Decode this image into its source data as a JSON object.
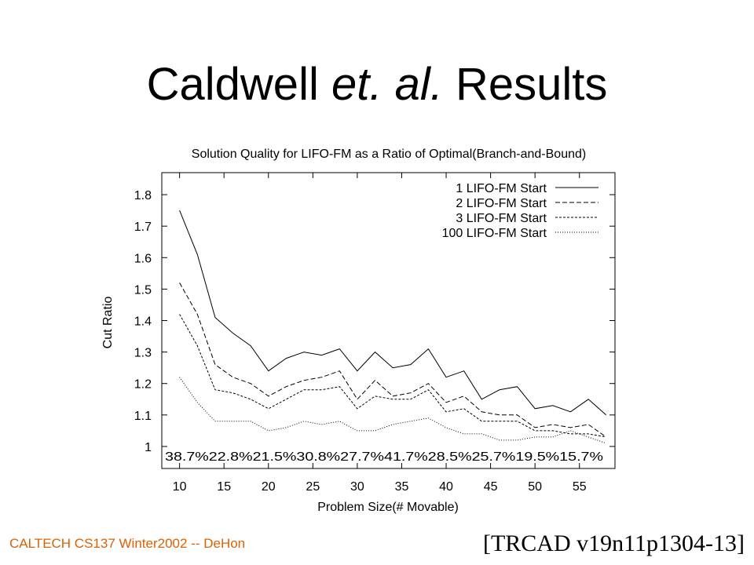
{
  "slide": {
    "title_plain_1": "Caldwell ",
    "title_italic": "et. al.",
    "title_plain_2": " Results",
    "footer_left": "CALTECH CS137 Winter2002 -- DeHon",
    "footer_right": "[TRCAD v19n11p1304-13]",
    "footer_color": "#e06000"
  },
  "chart_data": {
    "type": "line",
    "title": "Solution Quality for LIFO-FM as a Ratio of Optimal(Branch-and-Bound)",
    "xlabel": "Problem Size(# Movable)",
    "ylabel": "Cut Ratio",
    "xlim": [
      8,
      59
    ],
    "ylim": [
      0.93,
      1.87
    ],
    "xticks": [
      10,
      15,
      20,
      25,
      30,
      35,
      40,
      45,
      50,
      55
    ],
    "yticks": [
      1,
      1.1,
      1.2,
      1.3,
      1.4,
      1.5,
      1.6,
      1.7,
      1.8
    ],
    "ytick_labels": [
      "1",
      "1.1",
      "1.2",
      "1.3",
      "1.4",
      "1.5",
      "1.6",
      "1.7",
      "1.8"
    ],
    "legend_position": "top-right",
    "percent_annotations": [
      "38.7%",
      "22.8%",
      "21.5%",
      "30.8%",
      "27.7%",
      "41.7%",
      "28.5%",
      "25.7%",
      "19.5%",
      "15.7%"
    ],
    "x": [
      10,
      12,
      14,
      16,
      18,
      20,
      22,
      24,
      26,
      28,
      30,
      32,
      34,
      36,
      38,
      40,
      42,
      44,
      46,
      48,
      50,
      52,
      54,
      56,
      58
    ],
    "series": [
      {
        "name": "1 LIFO-FM Start",
        "dash": "",
        "values": [
          1.75,
          1.61,
          1.41,
          1.36,
          1.32,
          1.24,
          1.28,
          1.3,
          1.29,
          1.31,
          1.24,
          1.3,
          1.25,
          1.26,
          1.31,
          1.22,
          1.24,
          1.15,
          1.18,
          1.19,
          1.12,
          1.13,
          1.11,
          1.15,
          1.1
        ]
      },
      {
        "name": "2 LIFO-FM Start",
        "dash": "6,3",
        "values": [
          1.52,
          1.42,
          1.26,
          1.22,
          1.2,
          1.16,
          1.19,
          1.21,
          1.22,
          1.24,
          1.15,
          1.21,
          1.16,
          1.17,
          1.2,
          1.14,
          1.16,
          1.11,
          1.1,
          1.1,
          1.06,
          1.07,
          1.06,
          1.07,
          1.03
        ]
      },
      {
        "name": "3 LIFO-FM Start",
        "dash": "3,2",
        "values": [
          1.42,
          1.32,
          1.18,
          1.17,
          1.15,
          1.12,
          1.15,
          1.18,
          1.18,
          1.19,
          1.12,
          1.16,
          1.15,
          1.15,
          1.18,
          1.11,
          1.12,
          1.08,
          1.08,
          1.08,
          1.05,
          1.05,
          1.04,
          1.04,
          1.03
        ]
      },
      {
        "name": "100 LIFO-FM Start",
        "dash": "1,2",
        "values": [
          1.22,
          1.14,
          1.08,
          1.08,
          1.08,
          1.05,
          1.06,
          1.08,
          1.07,
          1.08,
          1.05,
          1.05,
          1.07,
          1.08,
          1.09,
          1.06,
          1.04,
          1.04,
          1.02,
          1.02,
          1.03,
          1.03,
          1.05,
          1.03,
          1.01
        ]
      }
    ]
  }
}
